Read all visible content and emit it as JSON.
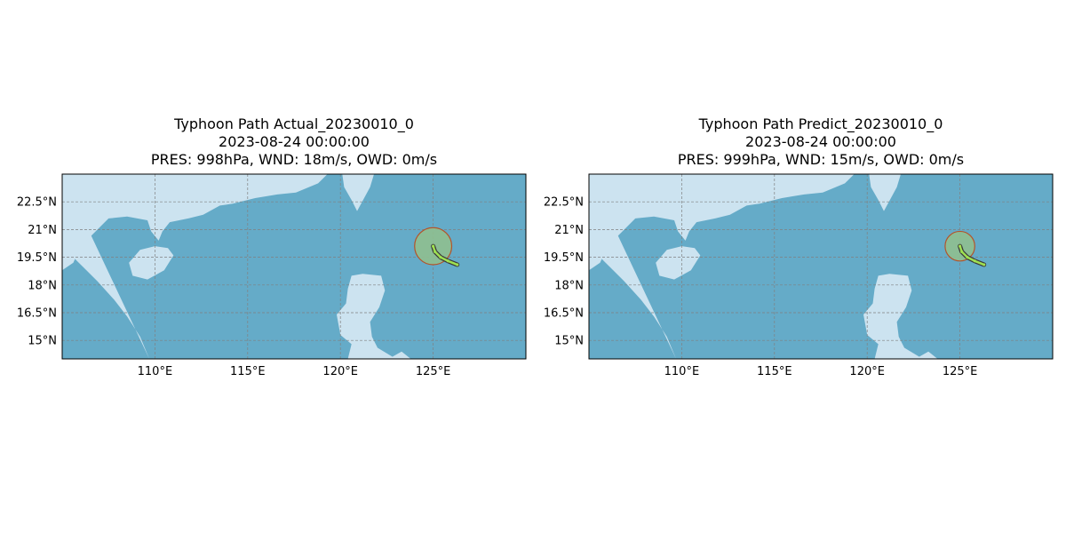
{
  "colors": {
    "land": "#cce3f0",
    "sea": "#65abc8",
    "grid": "#808080",
    "track": "#9ee052",
    "track_outline": "#3a3a3a",
    "wind_circle_fill": "#8fbf8f",
    "wind_circle_edge": "#b4532a"
  },
  "panels": [
    {
      "title": "Typhoon Path Actual_20230010_0",
      "time": "2023-08-24 00:00:00",
      "stats": "PRES: 998hPa, WND: 18m/s, OWD: 0m/s",
      "wind_circle": {
        "lon": 125.0,
        "lat": 20.1,
        "radius_deg": 1.0
      }
    },
    {
      "title": "Typhoon Path Predict_20230010_0",
      "time": "2023-08-24 00:00:00",
      "stats": "PRES: 999hPa, WND: 15m/s, OWD: 0m/s",
      "wind_circle": {
        "lon": 125.0,
        "lat": 20.1,
        "radius_deg": 0.8
      }
    }
  ],
  "map": {
    "lon_range": [
      105,
      130
    ],
    "lat_range": [
      14,
      24
    ],
    "x_ticks": [
      {
        "value": 110,
        "label": "110°E"
      },
      {
        "value": 115,
        "label": "115°E"
      },
      {
        "value": 120,
        "label": "120°E"
      },
      {
        "value": 125,
        "label": "125°E"
      }
    ],
    "y_ticks": [
      {
        "value": 22.5,
        "label": "22.5°N"
      },
      {
        "value": 21,
        "label": "21°N"
      },
      {
        "value": 19.5,
        "label": "19.5°N"
      },
      {
        "value": 18,
        "label": "18°N"
      },
      {
        "value": 16.5,
        "label": "16.5°N"
      },
      {
        "value": 15,
        "label": "15°N"
      }
    ],
    "track": [
      [
        126.3,
        19.1
      ],
      [
        125.8,
        19.3
      ],
      [
        125.4,
        19.5
      ],
      [
        125.1,
        19.8
      ],
      [
        125.0,
        20.1
      ]
    ],
    "land_polygons": [
      {
        "name": "china-mainland",
        "coords": [
          [
            105,
            24
          ],
          [
            105,
            20.3
          ],
          [
            105.5,
            19.6
          ],
          [
            106.1,
            19.0
          ],
          [
            106.9,
            18.2
          ],
          [
            107.8,
            17.2
          ],
          [
            108.5,
            16.3
          ],
          [
            109.2,
            15.2
          ],
          [
            109.7,
            14
          ]
        ]
      },
      {
        "name": "south-china-coast",
        "coords": [
          [
            105,
            24
          ],
          [
            119.3,
            24
          ],
          [
            118.8,
            23.5
          ],
          [
            117.6,
            23.0
          ],
          [
            116.6,
            22.9
          ],
          [
            115.4,
            22.7
          ],
          [
            114.2,
            22.4
          ],
          [
            113.5,
            22.3
          ],
          [
            112.6,
            21.8
          ],
          [
            111.8,
            21.6
          ],
          [
            110.8,
            21.4
          ],
          [
            110.4,
            20.9
          ],
          [
            110.2,
            20.4
          ],
          [
            109.8,
            20.9
          ],
          [
            109.6,
            21.5
          ],
          [
            108.5,
            21.7
          ],
          [
            107.5,
            21.6
          ],
          [
            106.7,
            20.8
          ],
          [
            106.0,
            20.1
          ],
          [
            105.6,
            19.2
          ],
          [
            105,
            18.8
          ]
        ]
      },
      {
        "name": "hainan",
        "coords": [
          [
            108.6,
            19.2
          ],
          [
            109.2,
            19.9
          ],
          [
            110.0,
            20.1
          ],
          [
            110.7,
            20.0
          ],
          [
            111.0,
            19.6
          ],
          [
            110.5,
            18.8
          ],
          [
            109.6,
            18.3
          ],
          [
            108.8,
            18.5
          ]
        ]
      },
      {
        "name": "taiwan",
        "coords": [
          [
            121.0,
            25.0
          ],
          [
            121.9,
            25.0
          ],
          [
            121.9,
            24.3
          ],
          [
            121.6,
            23.3
          ],
          [
            120.9,
            22.0
          ],
          [
            120.6,
            22.6
          ],
          [
            120.2,
            23.3
          ],
          [
            120.1,
            24.0
          ],
          [
            120.6,
            24.7
          ]
        ]
      },
      {
        "name": "luzon",
        "coords": [
          [
            120.6,
            18.5
          ],
          [
            121.2,
            18.6
          ],
          [
            122.2,
            18.5
          ],
          [
            122.4,
            17.7
          ],
          [
            122.1,
            16.8
          ],
          [
            121.6,
            16.0
          ],
          [
            121.7,
            15.2
          ],
          [
            122.0,
            14.6
          ],
          [
            123.0,
            14.0
          ],
          [
            120.4,
            14.0
          ],
          [
            120.6,
            14.8
          ],
          [
            120.0,
            15.3
          ],
          [
            119.8,
            16.4
          ],
          [
            120.3,
            17.0
          ],
          [
            120.4,
            17.8
          ]
        ]
      },
      {
        "name": "luzon-east",
        "coords": [
          [
            122.6,
            14.0
          ],
          [
            123.3,
            14.4
          ],
          [
            123.8,
            14.0
          ]
        ]
      }
    ]
  }
}
